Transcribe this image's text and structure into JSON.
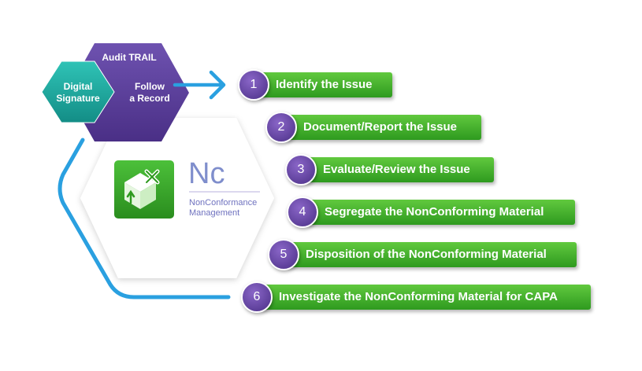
{
  "hexagons": {
    "audit": {
      "title": "Audit TRAIL",
      "follow": "Follow\na Record"
    },
    "digital": {
      "label": "Digital\nSignature"
    }
  },
  "module": {
    "abbr": "Nc",
    "name_line1": "NonConformance",
    "name_line2": "Management"
  },
  "steps": [
    {
      "number": "1",
      "label": "Identify the Issue"
    },
    {
      "number": "2",
      "label": "Document/Report the Issue"
    },
    {
      "number": "3",
      "label": "Evaluate/Review the Issue"
    },
    {
      "number": "4",
      "label": "Segregate the NonConforming Material"
    },
    {
      "number": "5",
      "label": "Disposition of the NonConforming Material"
    },
    {
      "number": "6",
      "label": "Investigate the NonConforming Material for CAPA"
    }
  ],
  "colors": {
    "purple": "#5b3f9a",
    "teal": "#1fa8a0",
    "green": "#3faf2a",
    "blue": "#2aa0e0"
  }
}
